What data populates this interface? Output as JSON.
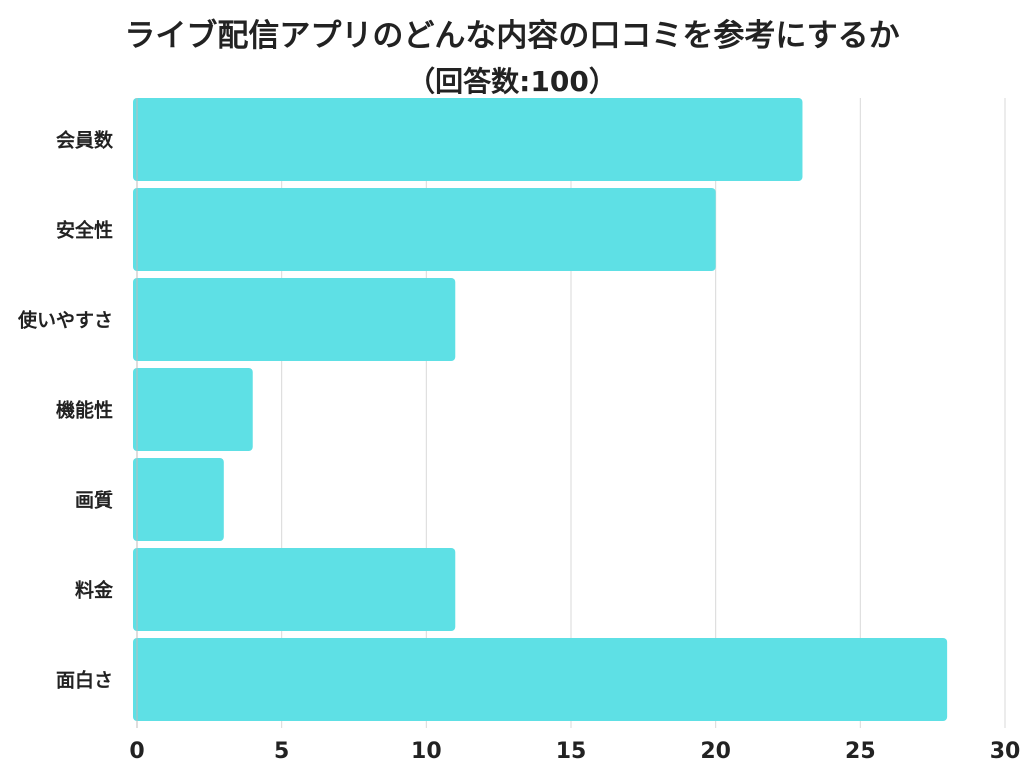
{
  "chart_data": {
    "type": "bar",
    "orientation": "horizontal",
    "title": "ライブ配信アプリのどんな内容の口コミを参考にするか",
    "subtitle": "（回答数:100）",
    "categories": [
      "会員数",
      "安全性",
      "使いやすさ",
      "機能性",
      "画質",
      "料金",
      "面白さ"
    ],
    "values": [
      23,
      20,
      11,
      4,
      3,
      11,
      28
    ],
    "xlim": [
      0,
      30
    ],
    "xticks": [
      0,
      5,
      10,
      15,
      20,
      25,
      30
    ],
    "grid": true,
    "bar_color": "#5ee0e5",
    "grid_color": "#d9d9d9",
    "xlabel": "",
    "ylabel": ""
  }
}
